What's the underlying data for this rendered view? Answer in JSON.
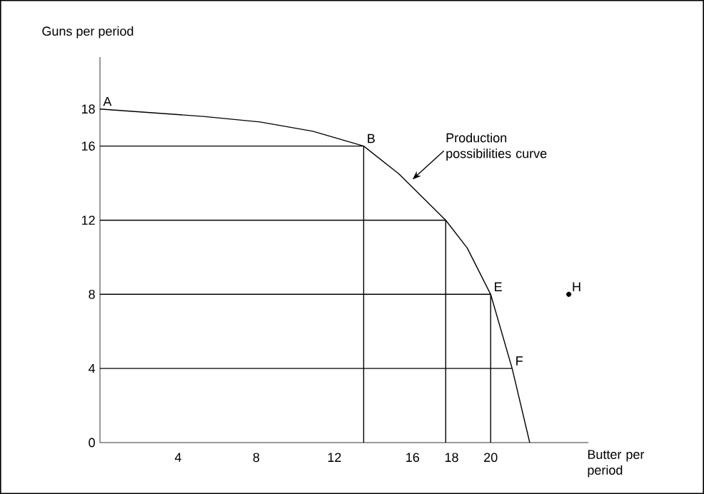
{
  "chart_data": {
    "type": "line",
    "xlabel": "Butter per period",
    "ylabel": "Guns per period",
    "xlim": [
      0,
      25
    ],
    "ylim": [
      0,
      20.8
    ],
    "xticks": [
      4,
      8,
      12,
      16,
      18,
      20
    ],
    "yticks": [
      0,
      4,
      8,
      12,
      16,
      18
    ],
    "grid": false,
    "series": [
      {
        "color": "#000000",
        "x": [
          0,
          5.3,
          8.2,
          10.9,
          13.5,
          15.3,
          17.7,
          18.8,
          20,
          21.1,
          22
        ],
        "values": [
          18,
          17.6,
          17.3,
          16.8,
          16,
          14.5,
          12,
          10.5,
          8,
          4,
          0
        ]
      },
      {
        "color": "#000000",
        "x": [
          0,
          13.5,
          13.5
        ],
        "values": [
          16,
          16,
          0
        ]
      },
      {
        "color": "#000000",
        "x": [
          0,
          17.7,
          17.7
        ],
        "values": [
          12,
          12,
          0
        ]
      },
      {
        "color": "#000000",
        "x": [
          0,
          20,
          20
        ],
        "values": [
          8,
          8,
          0
        ]
      },
      {
        "color": "#000000",
        "x": [
          0,
          21.1
        ],
        "values": [
          4,
          4
        ]
      },
      {
        "type": "scatter",
        "color": "#000000",
        "x": [
          24
        ],
        "values": [
          8
        ]
      }
    ],
    "annotations": [
      {
        "text": "A",
        "x": 0,
        "y": 18
      },
      {
        "text": "B",
        "x": 13.5,
        "y": 16
      },
      {
        "text": "E",
        "x": 20,
        "y": 8
      },
      {
        "text": "F",
        "x": 21.1,
        "y": 4
      },
      {
        "text": "H",
        "x": 24,
        "y": 8
      },
      {
        "text": "Production possibilities curve",
        "x": 16,
        "y": 14.2
      }
    ]
  }
}
